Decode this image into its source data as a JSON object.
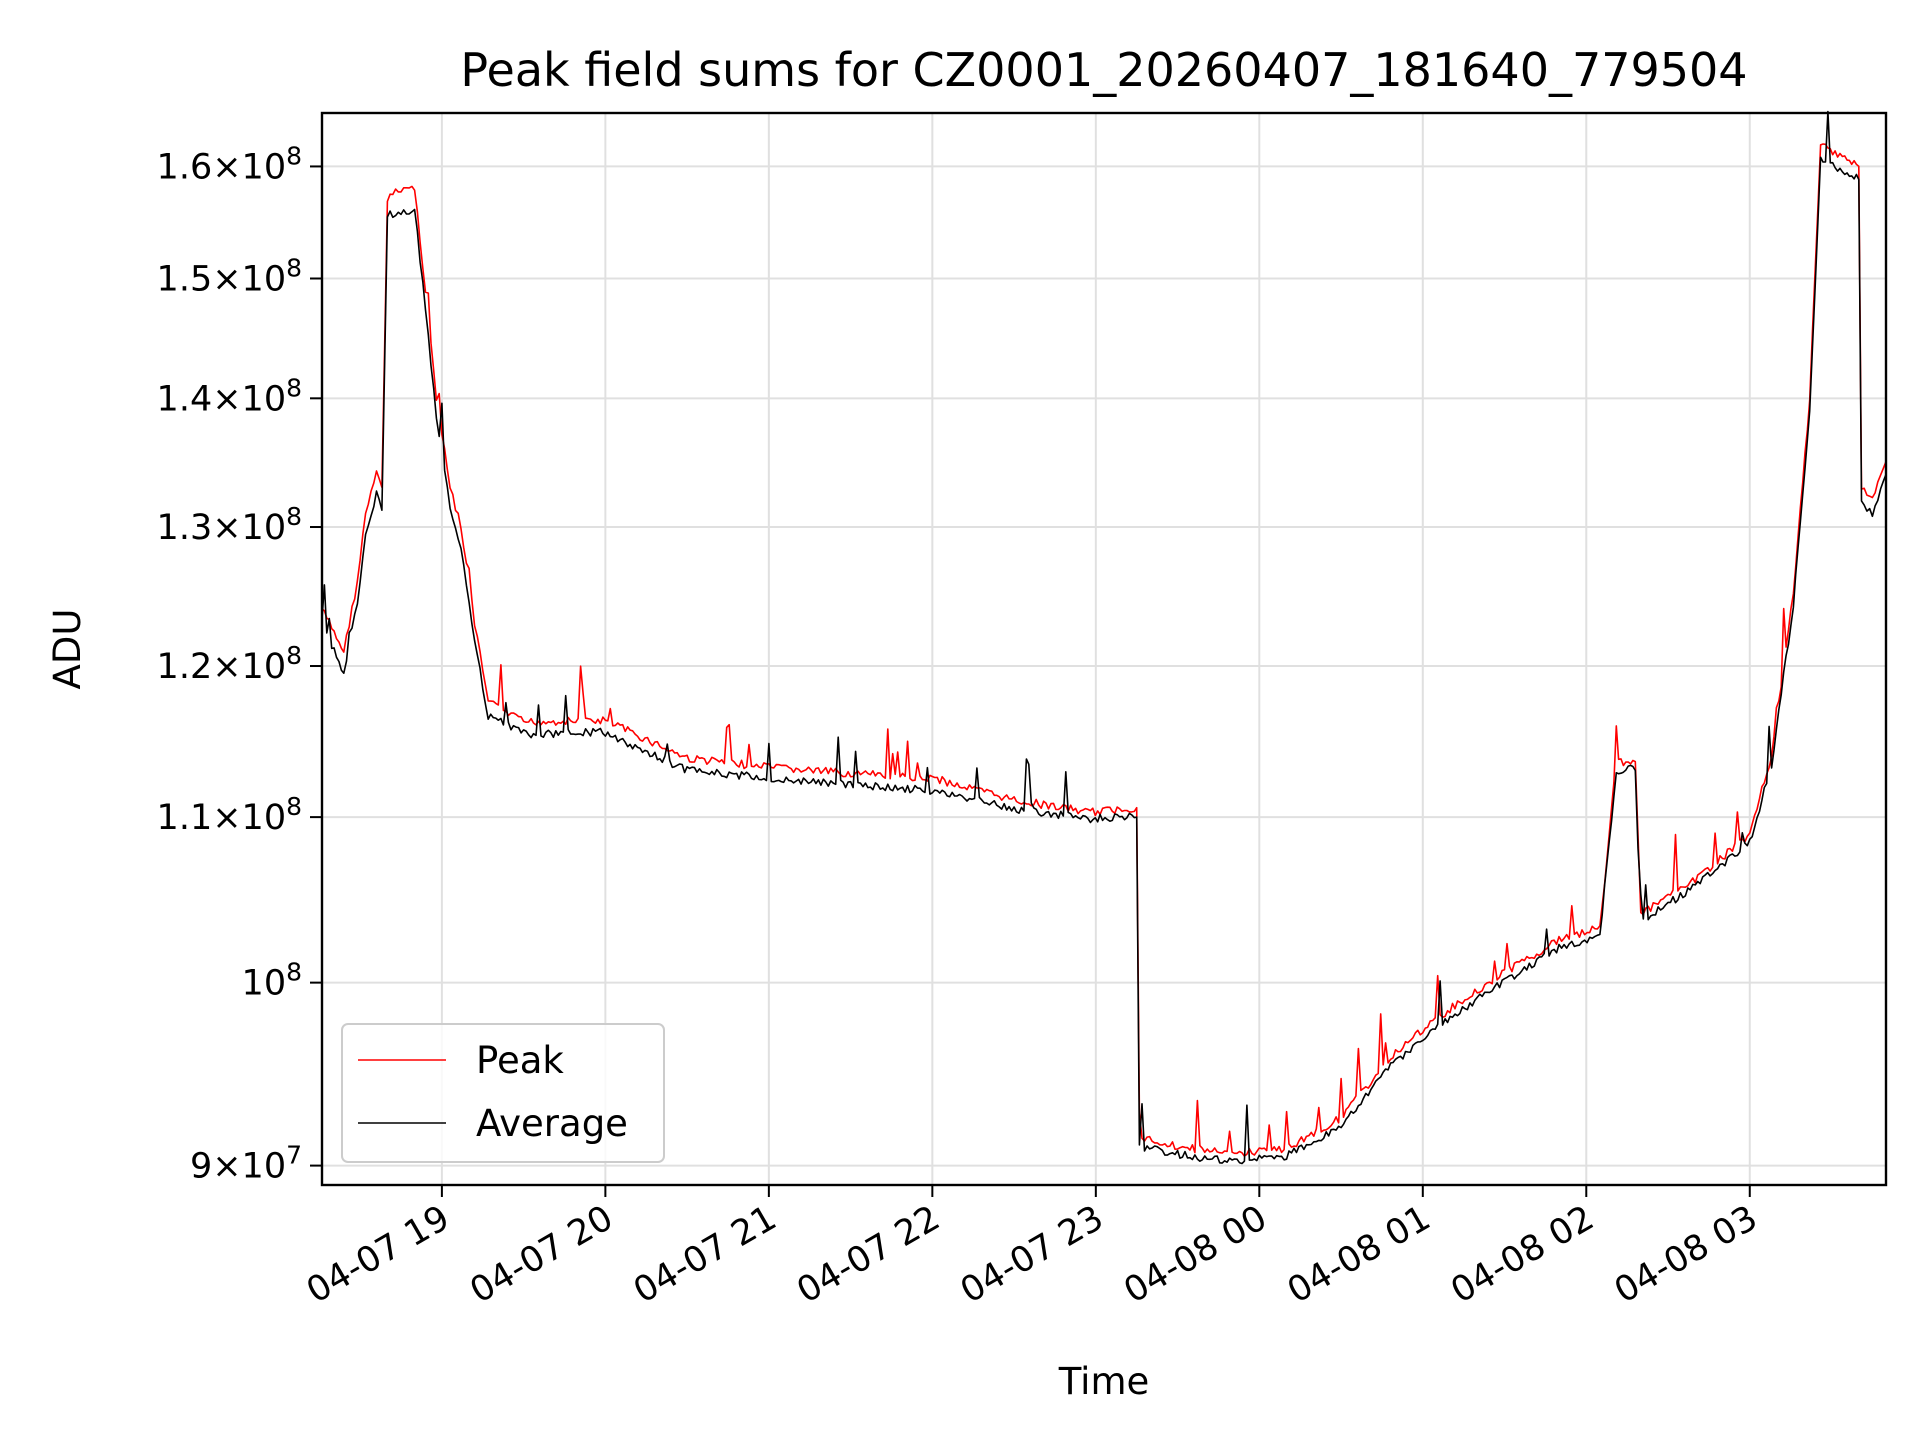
{
  "chart_data": {
    "type": "line",
    "title": "Peak field sums for CZ0001_20260407_181640_779504",
    "xlabel": "Time",
    "ylabel": "ADU",
    "y_scale": "log",
    "grid": true,
    "legend_position": "lower-left",
    "xlim": [
      "2026-04-07 18:16",
      "2026-04-08 03:50"
    ],
    "ylim": [
      89000000,
      165000000
    ],
    "x_ticks": [
      {
        "label": "04-07 19",
        "time": "2026-04-07 19:00"
      },
      {
        "label": "04-07 20",
        "time": "2026-04-07 20:00"
      },
      {
        "label": "04-07 21",
        "time": "2026-04-07 21:00"
      },
      {
        "label": "04-07 22",
        "time": "2026-04-07 22:00"
      },
      {
        "label": "04-07 23",
        "time": "2026-04-07 23:00"
      },
      {
        "label": "04-08 00",
        "time": "2026-04-08 00:00"
      },
      {
        "label": "04-08 01",
        "time": "2026-04-08 01:00"
      },
      {
        "label": "04-08 02",
        "time": "2026-04-08 02:00"
      },
      {
        "label": "04-08 03",
        "time": "2026-04-08 03:00"
      }
    ],
    "y_ticks": [
      {
        "mant": "9",
        "exp": "7",
        "value": 90000000
      },
      {
        "mant": "",
        "exp": "8",
        "value": 100000000
      },
      {
        "mant": "1.1",
        "exp": "8",
        "value": 110000000
      },
      {
        "mant": "1.2",
        "exp": "8",
        "value": 120000000
      },
      {
        "mant": "1.3",
        "exp": "8",
        "value": 130000000
      },
      {
        "mant": "1.4",
        "exp": "8",
        "value": 140000000
      },
      {
        "mant": "1.5",
        "exp": "8",
        "value": 150000000
      },
      {
        "mant": "1.6",
        "exp": "8",
        "value": 160000000
      }
    ],
    "series": [
      {
        "name": "Peak",
        "color": "#ff0000",
        "points": [
          [
            "2026-04-07 18:16",
            124000000
          ],
          [
            "2026-04-07 18:24",
            121000000
          ],
          [
            "2026-04-07 18:29",
            126000000
          ],
          [
            "2026-04-07 18:32",
            131000000
          ],
          [
            "2026-04-07 18:36",
            134000000
          ],
          [
            "2026-04-07 18:38",
            133000000
          ],
          [
            "2026-04-07 18:40",
            157000000
          ],
          [
            "2026-04-07 18:45",
            158000000
          ],
          [
            "2026-04-07 18:50",
            158000000
          ],
          [
            "2026-04-07 18:54",
            149000000
          ],
          [
            "2026-04-07 18:58",
            140000000
          ],
          [
            "2026-04-07 19:03",
            133000000
          ],
          [
            "2026-04-07 19:07",
            130000000
          ],
          [
            "2026-04-07 19:12",
            123000000
          ],
          [
            "2026-04-07 19:17",
            117500000
          ],
          [
            "2026-04-07 19:30",
            116200000
          ],
          [
            "2026-04-07 20:00",
            116300000
          ],
          [
            "2026-04-07 20:30",
            113800000
          ],
          [
            "2026-04-07 21:00",
            113200000
          ],
          [
            "2026-04-07 21:30",
            112800000
          ],
          [
            "2026-04-07 22:00",
            112500000
          ],
          [
            "2026-04-07 22:30",
            111100000
          ],
          [
            "2026-04-07 22:58",
            110300000
          ],
          [
            "2026-04-07 23:15",
            110600000
          ],
          [
            "2026-04-07 23:16",
            91500000
          ],
          [
            "2026-04-07 23:30",
            91000000
          ],
          [
            "2026-04-07 23:50",
            90600000
          ],
          [
            "2026-04-08 00:10",
            90900000
          ],
          [
            "2026-04-08 00:30",
            92500000
          ],
          [
            "2026-04-08 00:50",
            96100000
          ],
          [
            "2026-04-08 01:10",
            98500000
          ],
          [
            "2026-04-08 01:30",
            100600000
          ],
          [
            "2026-04-08 01:50",
            102500000
          ],
          [
            "2026-04-08 02:05",
            103200000
          ],
          [
            "2026-04-08 02:11",
            113500000
          ],
          [
            "2026-04-08 02:18",
            113700000
          ],
          [
            "2026-04-08 02:20",
            104000000
          ],
          [
            "2026-04-08 02:40",
            106100000
          ],
          [
            "2026-04-08 03:00",
            108900000
          ],
          [
            "2026-04-08 03:08",
            114000000
          ],
          [
            "2026-04-08 03:16",
            125000000
          ],
          [
            "2026-04-08 03:22",
            140000000
          ],
          [
            "2026-04-08 03:26",
            162000000
          ],
          [
            "2026-04-08 03:34",
            161000000
          ],
          [
            "2026-04-08 03:40",
            160000000
          ],
          [
            "2026-04-08 03:41",
            133000000
          ],
          [
            "2026-04-08 03:45",
            132000000
          ],
          [
            "2026-04-08 03:50",
            135000000
          ]
        ]
      },
      {
        "name": "Average",
        "color": "#000000",
        "points": [
          [
            "2026-04-07 18:16",
            123000000
          ],
          [
            "2026-04-07 18:24",
            119500000
          ],
          [
            "2026-04-07 18:29",
            124500000
          ],
          [
            "2026-04-07 18:32",
            129500000
          ],
          [
            "2026-04-07 18:36",
            132500000
          ],
          [
            "2026-04-07 18:38",
            131500000
          ],
          [
            "2026-04-07 18:40",
            155500000
          ],
          [
            "2026-04-07 18:45",
            156000000
          ],
          [
            "2026-04-07 18:50",
            156000000
          ],
          [
            "2026-04-07 18:54",
            147500000
          ],
          [
            "2026-04-07 18:58",
            138500000
          ],
          [
            "2026-04-07 19:03",
            131500000
          ],
          [
            "2026-04-07 19:07",
            128500000
          ],
          [
            "2026-04-07 19:12",
            121800000
          ],
          [
            "2026-04-07 19:17",
            116600000
          ],
          [
            "2026-04-07 19:30",
            115400000
          ],
          [
            "2026-04-07 20:00",
            115500000
          ],
          [
            "2026-04-07 20:30",
            113000000
          ],
          [
            "2026-04-07 21:00",
            112500000
          ],
          [
            "2026-04-07 21:30",
            112100000
          ],
          [
            "2026-04-07 22:00",
            111700000
          ],
          [
            "2026-04-07 22:30",
            110500000
          ],
          [
            "2026-04-07 22:58",
            109900000
          ],
          [
            "2026-04-07 23:15",
            110000000
          ],
          [
            "2026-04-07 23:16",
            91000000
          ],
          [
            "2026-04-07 23:30",
            90600000
          ],
          [
            "2026-04-07 23:50",
            90200000
          ],
          [
            "2026-04-08 00:10",
            90500000
          ],
          [
            "2026-04-08 00:30",
            92000000
          ],
          [
            "2026-04-08 00:50",
            95600000
          ],
          [
            "2026-04-08 01:10",
            98000000
          ],
          [
            "2026-04-08 01:30",
            100100000
          ],
          [
            "2026-04-08 01:50",
            102000000
          ],
          [
            "2026-04-08 02:05",
            102800000
          ],
          [
            "2026-04-08 02:11",
            113000000
          ],
          [
            "2026-04-08 02:18",
            113200000
          ],
          [
            "2026-04-08 02:20",
            103600000
          ],
          [
            "2026-04-08 02:40",
            105700000
          ],
          [
            "2026-04-08 03:00",
            108400000
          ],
          [
            "2026-04-08 03:08",
            113400000
          ],
          [
            "2026-04-08 03:16",
            124300000
          ],
          [
            "2026-04-08 03:22",
            139000000
          ],
          [
            "2026-04-08 03:26",
            160500000
          ],
          [
            "2026-04-08 03:34",
            159700000
          ],
          [
            "2026-04-08 03:40",
            158800000
          ],
          [
            "2026-04-08 03:41",
            131800000
          ],
          [
            "2026-04-08 03:45",
            131000000
          ],
          [
            "2026-04-08 03:50",
            134000000
          ]
        ]
      }
    ]
  }
}
